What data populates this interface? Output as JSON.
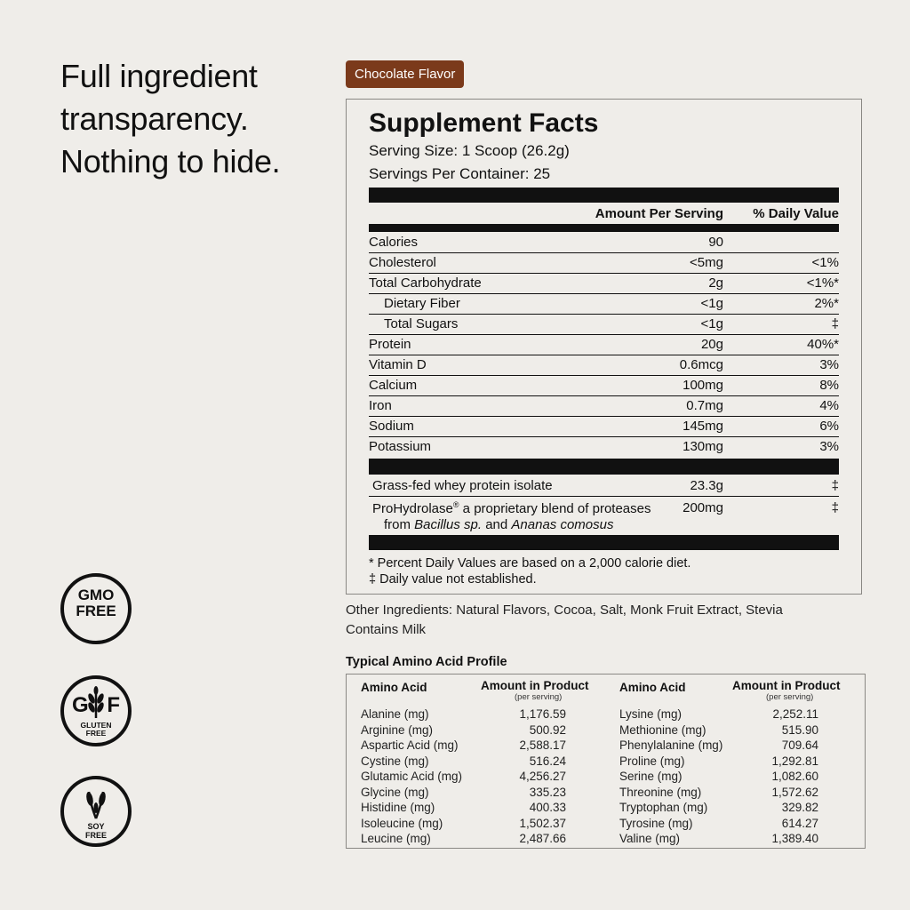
{
  "headline": [
    "Full ingredient",
    "transparency.",
    "Nothing to hide."
  ],
  "flavor_badge": "Chocolate Flavor",
  "facts": {
    "title": "Supplement Facts",
    "serving_size": "Serving Size: 1 Scoop (26.2g)",
    "servings_per_container": "Servings Per Container: 25",
    "col_amount": "Amount Per Serving",
    "col_dv": "% Daily Value",
    "nutrients": [
      {
        "name": "Calories",
        "amount": "90",
        "dv": ""
      },
      {
        "name": "Cholesterol",
        "amount": "<5mg",
        "dv": "<1%"
      },
      {
        "name": "Total Carbohydrate",
        "amount": "2g",
        "dv": "<1%*"
      },
      {
        "name": "Dietary Fiber",
        "amount": "<1g",
        "dv": "2%*"
      },
      {
        "name": "Total Sugars",
        "amount": "<1g",
        "dv": "‡"
      },
      {
        "name": "Protein",
        "amount": "20g",
        "dv": "40%*"
      },
      {
        "name": "Vitamin D",
        "amount": "0.6mcg",
        "dv": "3%"
      },
      {
        "name": "Calcium",
        "amount": "100mg",
        "dv": "8%"
      },
      {
        "name": "Iron",
        "amount": "0.7mg",
        "dv": "4%"
      },
      {
        "name": "Sodium",
        "amount": "145mg",
        "dv": "6%"
      },
      {
        "name": "Potassium",
        "amount": "130mg",
        "dv": "3%"
      }
    ],
    "ingredients": {
      "whey_name": "Grass-fed whey protein isolate",
      "whey_amount": "23.3g",
      "whey_dv": "‡",
      "pro_name": "ProHydrolase",
      "pro_reg": "®",
      "pro_desc": " a proprietary blend of proteases",
      "pro_from": "from ",
      "pro_bacillus": "Bacillus sp.",
      "pro_and": " and ",
      "pro_ananas": "Ananas comosus",
      "pro_amount": "200mg",
      "pro_dv": "‡"
    },
    "footnote_1": "* Percent Daily Values are based on a 2,000 calorie diet.",
    "footnote_2": "‡ Daily value not established."
  },
  "other_ingredients": "Other Ingredients: Natural Flavors, Cocoa, Salt, Monk Fruit Extract, Stevia",
  "contains": "Contains Milk",
  "amino": {
    "title": "Typical Amino Acid Profile",
    "header_acid": "Amino Acid",
    "header_amount": "Amount in Product",
    "header_per": "(per serving)",
    "left": [
      {
        "name": "Alanine (mg)",
        "value": "1,176.59"
      },
      {
        "name": "Arginine (mg)",
        "value": "500.92"
      },
      {
        "name": "Aspartic Acid (mg)",
        "value": "2,588.17"
      },
      {
        "name": "Cystine (mg)",
        "value": "516.24"
      },
      {
        "name": "Glutamic Acid (mg)",
        "value": "4,256.27"
      },
      {
        "name": "Glycine (mg)",
        "value": "335.23"
      },
      {
        "name": "Histidine (mg)",
        "value": "400.33"
      },
      {
        "name": "Isoleucine (mg)",
        "value": "1,502.37"
      },
      {
        "name": "Leucine (mg)",
        "value": "2,487.66"
      }
    ],
    "right": [
      {
        "name": "Lysine (mg)",
        "value": "2,252.11"
      },
      {
        "name": "Methionine (mg)",
        "value": "515.90"
      },
      {
        "name": "Phenylalanine (mg)",
        "value": "709.64"
      },
      {
        "name": "Proline (mg)",
        "value": "1,292.81"
      },
      {
        "name": "Serine (mg)",
        "value": "1,082.60"
      },
      {
        "name": "Threonine (mg)",
        "value": "1,572.62"
      },
      {
        "name": "Tryptophan (mg)",
        "value": "329.82"
      },
      {
        "name": "Tyrosine (mg)",
        "value": "614.27"
      },
      {
        "name": "Valine (mg)",
        "value": "1,389.40"
      }
    ]
  },
  "badges": {
    "gmo_line1": "GMO",
    "gmo_line2": "FREE",
    "gluten_g": "G",
    "gluten_f": "F",
    "gluten_line1": "GLUTEN",
    "gluten_line2": "FREE",
    "soy_line1": "SOY",
    "soy_line2": "FREE",
    "icons": [
      "gmo-free-icon",
      "wheat-icon",
      "soy-icon"
    ]
  },
  "colors": {
    "background": "#efede9",
    "flavor_badge": "#7b3a1b",
    "text": "#111111"
  }
}
